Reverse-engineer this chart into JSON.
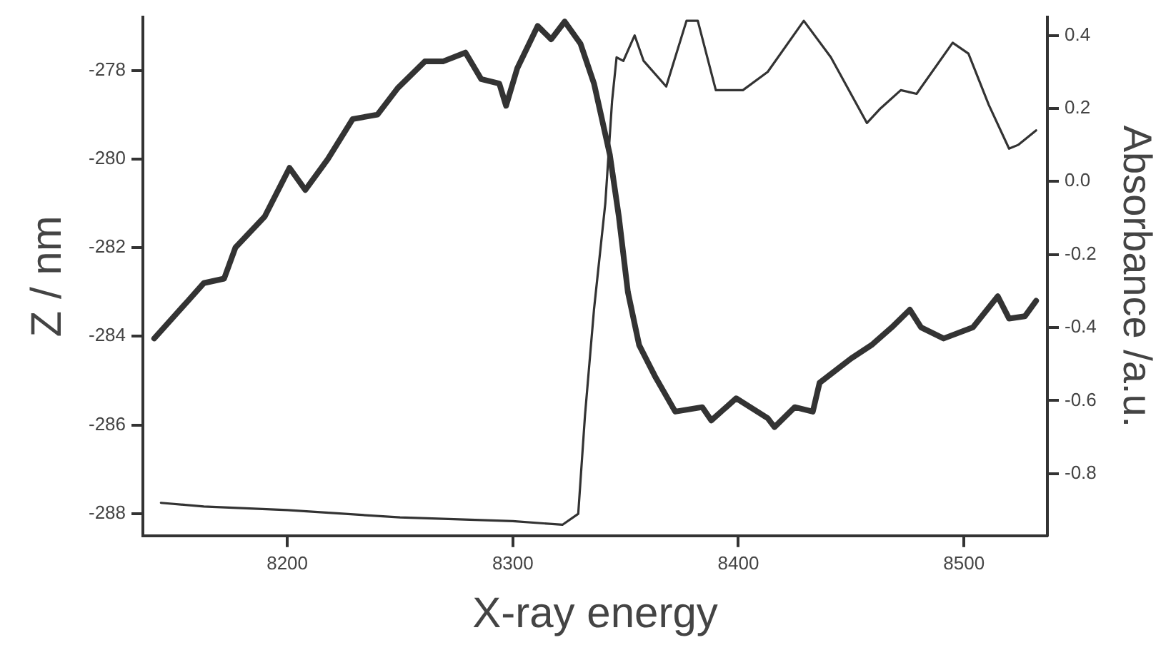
{
  "chart_data": {
    "type": "line",
    "xlabel": "X-ray energy",
    "ylabel": "Z / nm",
    "y2label": "Absorbance /a.u.",
    "xlim": [
      8136,
      8537
    ],
    "xticks": [
      8200,
      8300,
      8400,
      8500
    ],
    "ylim": [
      -288.5,
      -276.8
    ],
    "yticks": [
      -288,
      -286,
      -284,
      -282,
      -280,
      -278
    ],
    "y2lim": [
      -0.97,
      0.45
    ],
    "y2ticks": [
      -0.8,
      -0.6,
      -0.4,
      -0.2,
      {
        "value": 0,
        "label": "0.0"
      },
      0.2,
      0.4
    ],
    "grid": false,
    "legend": false,
    "marker": "none",
    "line_style": "solid",
    "series": [
      {
        "color": "#333333",
        "x": [
          8141,
          8156,
          8163,
          8172,
          8177,
          8190,
          8201,
          8208,
          8218,
          8229,
          8240,
          8249,
          8261,
          8269,
          8279,
          8286,
          8294,
          8297,
          8302,
          8311,
          8317,
          8323,
          8330,
          8336,
          8343,
          8347,
          8351,
          8356,
          8363,
          8372,
          8384,
          8388,
          8399,
          8413,
          8416,
          8425,
          8433,
          8436,
          8450,
          8459,
          8468,
          8476,
          8481,
          8491,
          8504,
          8515,
          8520,
          8527,
          8532
        ],
        "values": [
          -284.05,
          -283.2,
          -282.8,
          -282.7,
          -282.0,
          -281.3,
          -280.2,
          -280.7,
          -280.0,
          -279.1,
          -279.0,
          -278.4,
          -277.8,
          -277.8,
          -277.6,
          -278.2,
          -278.3,
          -278.8,
          -277.95,
          -277.0,
          -277.3,
          -276.9,
          -277.4,
          -278.3,
          -279.9,
          -281.3,
          -283.0,
          -284.2,
          -284.9,
          -285.7,
          -285.6,
          -285.9,
          -285.4,
          -285.85,
          -286.05,
          -285.6,
          -285.7,
          -285.05,
          -284.5,
          -284.2,
          -283.8,
          -283.4,
          -283.8,
          -284.05,
          -283.8,
          -283.1,
          -283.6,
          -283.55,
          -283.2
        ]
      },
      {
        "color": "#333333",
        "axis": "y2",
        "x": [
          8144,
          8163,
          8200,
          8250,
          8300,
          8322,
          8329,
          8332,
          8336,
          8341,
          8344,
          8346,
          8349,
          8354,
          8358,
          8368,
          8377,
          8382,
          8390,
          8402,
          8413,
          8429,
          8441,
          8457,
          8463,
          8472,
          8479,
          8495,
          8502,
          8511,
          8520,
          8524,
          8532
        ],
        "values": [
          -0.88,
          -0.89,
          -0.9,
          -0.92,
          -0.93,
          -0.94,
          -0.91,
          -0.64,
          -0.35,
          -0.06,
          0.22,
          0.34,
          0.33,
          0.4,
          0.33,
          0.26,
          0.44,
          0.44,
          0.25,
          0.25,
          0.3,
          0.44,
          0.34,
          0.16,
          0.2,
          0.25,
          0.24,
          0.38,
          0.35,
          0.21,
          0.09,
          0.1,
          0.14
        ]
      }
    ]
  }
}
